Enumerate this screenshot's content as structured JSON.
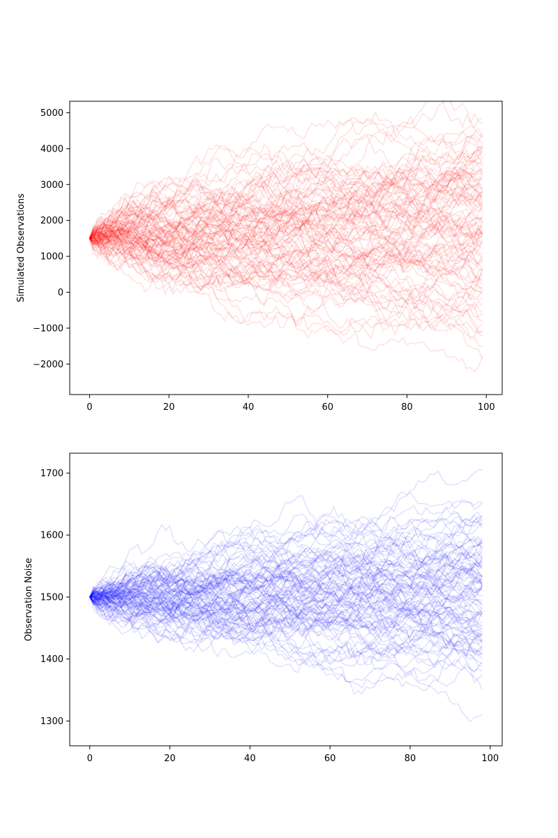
{
  "chart_data": [
    {
      "type": "line",
      "title": "",
      "xlabel": "",
      "ylabel": "Simulated Observations",
      "xlim": [
        -5,
        104
      ],
      "ylim": [
        -2850,
        5320
      ],
      "xticks": [
        0,
        20,
        40,
        60,
        80,
        100
      ],
      "xtick_labels": [
        "0",
        "20",
        "40",
        "60",
        "80",
        "100"
      ],
      "yticks": [
        -2000,
        -1000,
        0,
        1000,
        2000,
        3000,
        4000,
        5000
      ],
      "ytick_labels": [
        "−2000",
        "−1000",
        "0",
        "1000",
        "2000",
        "3000",
        "4000",
        "5000"
      ],
      "grid": false,
      "legend": "none",
      "series_count": 100,
      "points_per_series": 100,
      "x_start": 0,
      "x_end": 99,
      "start_value": 1500,
      "final_values_min": -1850,
      "final_values_max": 4850,
      "color": "#ff0000",
      "line_opacity": 0.12
    },
    {
      "type": "line",
      "title": "",
      "xlabel": "",
      "ylabel": "Observation Noise",
      "xlim": [
        -5,
        103
      ],
      "ylim": [
        1260,
        1732
      ],
      "xticks": [
        0,
        20,
        40,
        60,
        80,
        100
      ],
      "xtick_labels": [
        "0",
        "20",
        "40",
        "60",
        "80",
        "100"
      ],
      "yticks": [
        1300,
        1400,
        1500,
        1600,
        1700
      ],
      "ytick_labels": [
        "1300",
        "1400",
        "1500",
        "1600",
        "1700"
      ],
      "grid": false,
      "legend": "none",
      "series_count": 100,
      "points_per_series": 99,
      "x_start": 0,
      "x_end": 98,
      "start_value": 1500,
      "final_values_min": 1310,
      "final_values_max": 1705,
      "color": "#0000ff",
      "line_opacity": 0.12
    }
  ]
}
